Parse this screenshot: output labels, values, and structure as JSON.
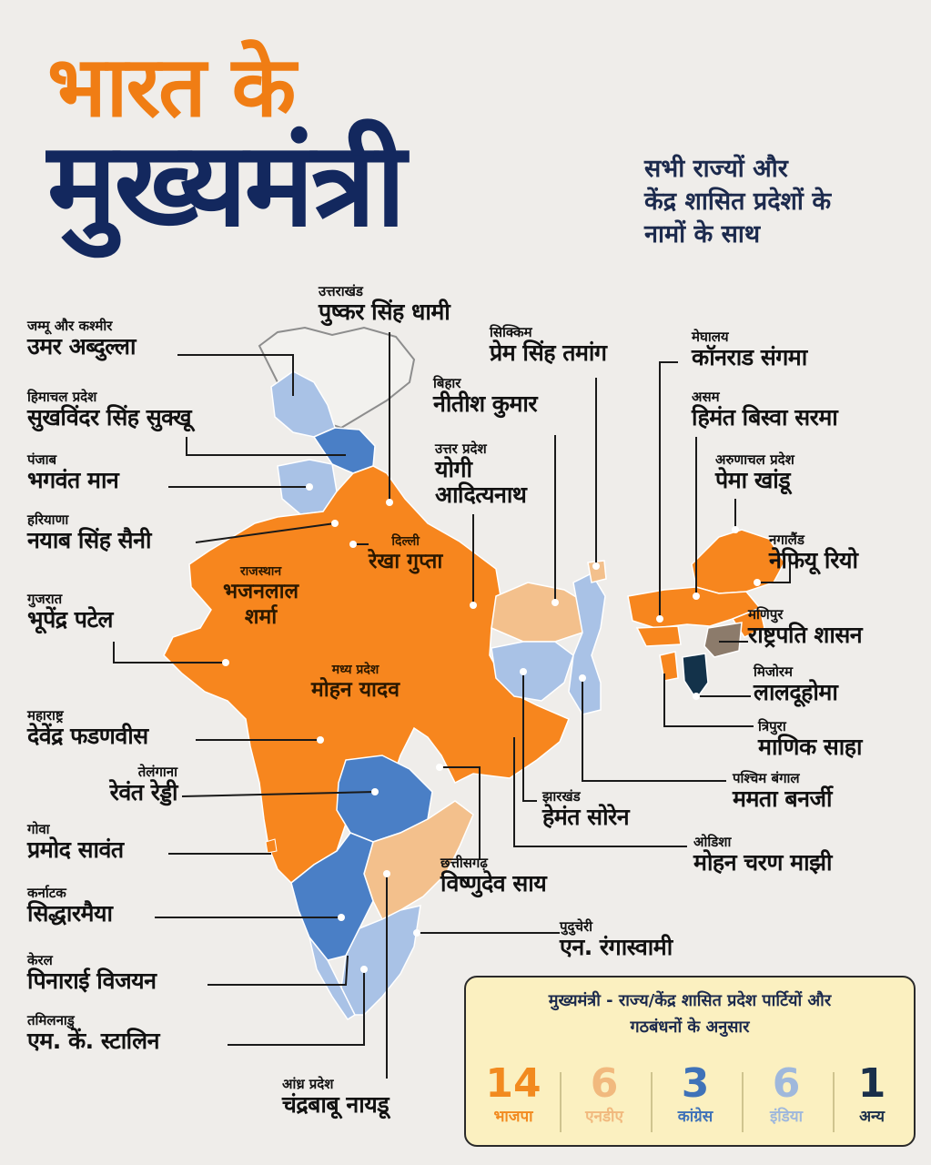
{
  "title": {
    "line1": "भारत के",
    "line2": "मुख्यमंत्री"
  },
  "subtitle": [
    "सभी राज्यों और",
    "केंद्र शासित प्रदेशों के",
    "नामों के साथ"
  ],
  "colors": {
    "bjp": "#f7861e",
    "nda": "#f3c08c",
    "congress": "#4a7fc6",
    "india": "#a9c2e6",
    "other": "#13324a",
    "presidents_rule": "#8c7b6b",
    "title_orange": "#f07d14",
    "title_navy": "#13285e"
  },
  "labels": {
    "jk": {
      "state": "जम्मू और कश्मीर",
      "cm": "उमर अब्दुल्ला"
    },
    "hp": {
      "state": "हिमाचल प्रदेश",
      "cm": "सुखविंदर सिंह सुक्खू"
    },
    "pb": {
      "state": "पंजाब",
      "cm": "भगवंत मान"
    },
    "hr": {
      "state": "हरियाणा",
      "cm": "नयाब सिंह सैनी"
    },
    "gj": {
      "state": "गुजरात",
      "cm": "भूपेंद्र पटेल"
    },
    "mh": {
      "state": "महाराष्ट्र",
      "cm": "देवेंद्र फडणवीस"
    },
    "tg": {
      "state": "तेलंगाना",
      "cm": "रेवंत रेड्डी"
    },
    "ga": {
      "state": "गोवा",
      "cm": "प्रमोद सावंत"
    },
    "ka": {
      "state": "कर्नाटक",
      "cm": "सिद्धारमैया"
    },
    "kl": {
      "state": "केरल",
      "cm": "पिनाराई विजयन"
    },
    "tn": {
      "state": "तमिलनाडु",
      "cm": "एम. कें. स्टालिन"
    },
    "ap": {
      "state": "आंध्र प्रदेश",
      "cm": "चंद्रबाबू नायडू"
    },
    "uk": {
      "state": "उत्तराखंड",
      "cm": "पुष्कर सिंह धामी"
    },
    "sk": {
      "state": "सिक्किम",
      "cm": "प्रेम सिंह तमांग"
    },
    "br": {
      "state": "बिहार",
      "cm": "नीतीश कुमार"
    },
    "up": {
      "state": "उत्तर प्रदेश",
      "cm1": "योगी",
      "cm2": "आदित्यनाथ"
    },
    "dl": {
      "state": "दिल्ली",
      "cm": "रेखा गुप्ता"
    },
    "rj": {
      "state": "राजस्थान",
      "cm1": "भजनलाल",
      "cm2": "शर्मा"
    },
    "mp": {
      "state": "मध्य प्रदेश",
      "cm": "मोहन यादव"
    },
    "ml": {
      "state": "मेघालय",
      "cm": "कॉनराड संगमा"
    },
    "as": {
      "state": "असम",
      "cm": "हिमंत बिस्वा सरमा"
    },
    "ar": {
      "state": "अरुणाचल प्रदेश",
      "cm": "पेमा खांडू"
    },
    "nl": {
      "state": "नगालैंड",
      "cm": "नेफियू रियो"
    },
    "mn": {
      "state": "मणिपुर",
      "cm": "राष्ट्रपति शासन"
    },
    "mz": {
      "state": "मिजोरम",
      "cm": "लालदूहोमा"
    },
    "tr": {
      "state": "त्रिपुरा",
      "cm": "माणिक साहा"
    },
    "wb": {
      "state": "पश्चिम बंगाल",
      "cm": "ममता बनर्जी"
    },
    "jh": {
      "state": "झारखंड",
      "cm": "हेमंत सोरेन"
    },
    "od": {
      "state": "ओडिशा",
      "cm": "मोहन चरण माझी"
    },
    "cg": {
      "state": "छत्तीसगढ़",
      "cm": "विष्णुदेव साय"
    },
    "py": {
      "state": "पुदुचेरी",
      "cm": "एन. रंगास्वामी"
    }
  },
  "legend": {
    "title_line1": "मुख्यमंत्री - राज्य/केंद्र शासित प्रदेश पार्टियों और",
    "title_line2": "गठबंधनों के अनुसार",
    "items": [
      {
        "count": "14",
        "party": "भाजपा",
        "color": "#f28a1f"
      },
      {
        "count": "6",
        "party": "एनडीए",
        "color": "#f1b97e"
      },
      {
        "count": "3",
        "party": "कांग्रेस",
        "color": "#3f72b8"
      },
      {
        "count": "6",
        "party": "इंडिया",
        "color": "#9fb8dc"
      },
      {
        "count": "1",
        "party": "अन्य",
        "color": "#1a2f4a"
      }
    ]
  }
}
